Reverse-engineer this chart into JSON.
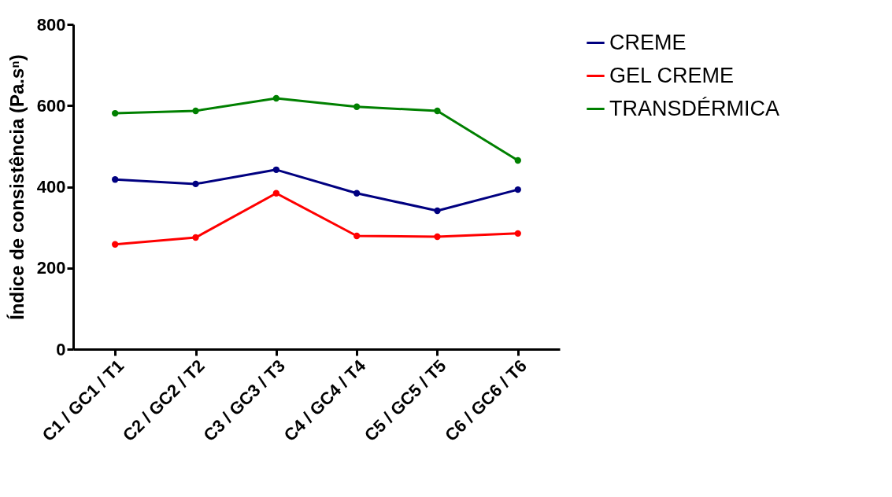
{
  "chart_data": {
    "type": "line",
    "ylabel": "Índice de consistência (Pa.sⁿ)",
    "categories": [
      "C1 / GC1 / T1",
      "C2 / GC2 / T2",
      "C3 / GC3 / T3",
      "C4 / GC4 / T4",
      "C5 / GC5 / T5",
      "C6 / GC6 / T6"
    ],
    "series": [
      {
        "name": "CREME",
        "color": "#000080",
        "values": [
          418,
          407,
          442,
          384,
          341,
          393
        ]
      },
      {
        "name": "GEL CREME",
        "color": "#ff0000",
        "values": [
          258,
          275,
          384,
          279,
          277,
          285
        ]
      },
      {
        "name": "TRANSDÉRMICA",
        "color": "#008000",
        "values": [
          581,
          587,
          618,
          597,
          587,
          465
        ]
      }
    ],
    "ylim": [
      0,
      800
    ],
    "yticks": [
      0,
      200,
      400,
      600,
      800
    ],
    "grid": false,
    "legend": "top right",
    "marker": "circle",
    "line_style": "solid"
  }
}
